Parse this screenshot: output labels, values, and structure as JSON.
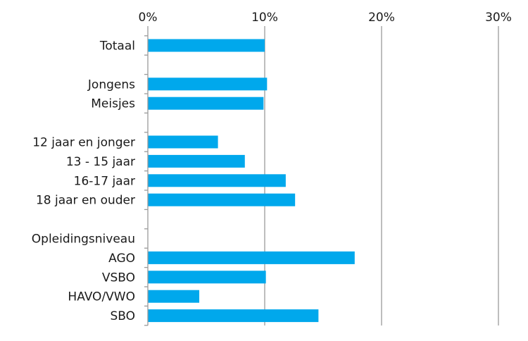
{
  "chart_data": {
    "type": "bar",
    "orientation": "horizontal",
    "categories": [
      "Totaal",
      "",
      "Jongens",
      "Meisjes",
      "",
      "12 jaar en jonger",
      "13 - 15 jaar",
      "16-17 jaar",
      "18 jaar en ouder",
      "",
      "Opleidingsniveau",
      "AGO",
      "VSBO",
      "HAVO/VWO",
      "SBO"
    ],
    "values": [
      10,
      null,
      10.2,
      9.9,
      null,
      6.0,
      8.3,
      11.8,
      12.6,
      null,
      null,
      17.7,
      10.1,
      4.4,
      14.6
    ],
    "x_ticks": [
      "0%",
      "10%",
      "20%",
      "30%"
    ],
    "x_tick_values": [
      0,
      10,
      20,
      30
    ],
    "xlim": [
      0,
      30
    ],
    "x_axis_position": "top",
    "grid": true,
    "bar_color": "#00a8ec",
    "gridline_color": "#9a9a9a",
    "axis_color": "#9a9a9a",
    "text_color": "#1a1a1a"
  }
}
